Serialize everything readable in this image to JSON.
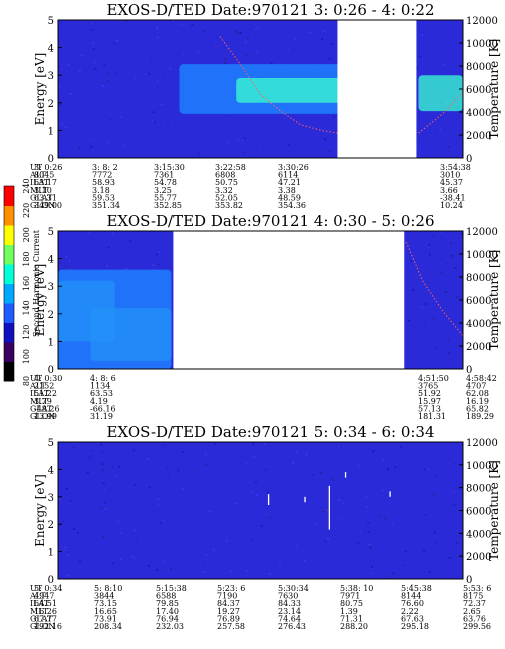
{
  "chart_data": [
    {
      "type": "heatmap",
      "title": "EXOS-D/TED   Date:970121  3: 0:26 - 4: 0:22",
      "ylabel": "Energy [eV]",
      "y2label": "Temperature [K]",
      "ylim": [
        0,
        5
      ],
      "y2lim": [
        0,
        12000
      ],
      "yticks": [
        0,
        1,
        2,
        3,
        4,
        5
      ],
      "y2ticks": [
        0,
        2000,
        4000,
        6000,
        8000,
        10000,
        12000
      ],
      "data_gaps": [
        [
          0.69,
          0.885
        ]
      ],
      "bands": [
        {
          "x": [
            0.3,
            0.7
          ],
          "y": [
            1.6,
            3.4
          ],
          "level": "mid"
        },
        {
          "x": [
            0.44,
            0.7
          ],
          "y": [
            2.0,
            2.9
          ],
          "level": "high"
        },
        {
          "x": [
            0.89,
            1.0
          ],
          "y": [
            1.7,
            3.0
          ],
          "level": "high"
        }
      ],
      "traces": [
        {
          "x": [
            0.4,
            0.45,
            0.5,
            0.55,
            0.6,
            0.65,
            0.69
          ],
          "y": [
            4.4,
            3.4,
            2.3,
            1.7,
            1.2,
            1.0,
            0.9
          ],
          "color": "#ff6060"
        },
        {
          "x": [
            0.89,
            0.95,
            1.0
          ],
          "y": [
            0.9,
            1.6,
            2.4
          ],
          "color": "#ff6060"
        }
      ],
      "table": {
        "rows": [
          {
            "label": "UT",
            "values": [
              "3: 0:26",
              "3: 8: 2",
              "3:15:30",
              "3:22:58",
              "3:30:26",
              "3:54:38"
            ]
          },
          {
            "label": "ALT",
            "values": [
              "8045",
              "7772",
              "7361",
              "6808",
              "6114",
              "3010"
            ]
          },
          {
            "label": "ILAT",
            "values": [
              "63.17",
              "58.93",
              "54.78",
              "50.75",
              "47.21",
              "45.37"
            ]
          },
          {
            "label": "MLT",
            "values": [
              "3.10",
              "3.18",
              "3.25",
              "3.32",
              "3.38",
              "3.66"
            ]
          },
          {
            "label": "GLAT",
            "values": [
              "63.31",
              "59.53",
              "55.77",
              "52.05",
              "48.59",
              "-38.41"
            ]
          },
          {
            "label": "GLON",
            "values": [
              "349.00",
              "351.34",
              "352.85",
              "353.82",
              "354.36",
              "10.24"
            ]
          }
        ]
      }
    },
    {
      "type": "heatmap",
      "title": "EXOS-D/TED   Date:970121  4: 0:30 - 5: 0:26",
      "ylabel": "Energy [eV]",
      "y2label": "Temperature [K]",
      "ylim": [
        0,
        5
      ],
      "y2lim": [
        0,
        12000
      ],
      "yticks": [
        0,
        1,
        2,
        3,
        4,
        5
      ],
      "y2ticks": [
        0,
        2000,
        4000,
        6000,
        8000,
        10000,
        12000
      ],
      "data_gaps": [
        [
          0.285,
          0.855
        ]
      ],
      "bands": [
        {
          "x": [
            0.0,
            0.14
          ],
          "y": [
            1.0,
            3.2
          ],
          "level": "high"
        },
        {
          "x": [
            0.08,
            0.28
          ],
          "y": [
            0.3,
            2.2
          ],
          "level": "high"
        },
        {
          "x": [
            0.0,
            0.28
          ],
          "y": [
            0.0,
            3.6
          ],
          "level": "mid"
        }
      ],
      "traces": [
        {
          "x": [
            0.86,
            0.9,
            0.95,
            1.0
          ],
          "y": [
            4.6,
            3.2,
            2.1,
            1.2
          ],
          "color": "#ff6060"
        }
      ],
      "table": {
        "rows": [
          {
            "label": "UT",
            "values": [
              "4: 0:30",
              "4: 8: 6",
              "4:51:50",
              "4:58:42"
            ]
          },
          {
            "label": "ALT",
            "values": [
              "2152",
              "1134",
              "3765",
              "4707"
            ]
          },
          {
            "label": "ILAT",
            "values": [
              "51.22",
              "63.53",
              "51.92",
              "62.08"
            ]
          },
          {
            "label": "MLT",
            "values": [
              "3.79",
              "4.19",
              "15.97",
              "16.19"
            ]
          },
          {
            "label": "GLAT",
            "values": [
              "-48.26",
              "-66.16",
              "57.13",
              "65.82"
            ]
          },
          {
            "label": "GLON",
            "values": [
              "13.99",
              "31.19",
              "181.31",
              "189.29"
            ]
          }
        ]
      }
    },
    {
      "type": "heatmap",
      "title": "EXOS-D/TED   Date:970121  5: 0:34 - 6: 0:34",
      "ylabel": "Energy [eV]",
      "y2label": "Temperature [K]",
      "ylim": [
        0,
        5
      ],
      "y2lim": [
        0,
        12000
      ],
      "yticks": [
        0,
        1,
        2,
        3,
        4,
        5
      ],
      "y2ticks": [
        0,
        2000,
        4000,
        6000,
        8000,
        10000,
        12000
      ],
      "data_gaps": [],
      "bands": [],
      "traces": [],
      "table": {
        "rows": [
          {
            "label": "UT",
            "values": [
              "5: 0:34",
              "5: 8:10",
              "5:15:38",
              "5:23: 6",
              "5:30:34",
              "5:38: 10",
              "5:45:38",
              "5:53: 6",
              "6: 0:34"
            ]
          },
          {
            "label": "ALT",
            "values": [
              "4947",
              "3844",
              "6588",
              "7190",
              "7630",
              "7971",
              "8144",
              "8175",
              "8066"
            ]
          },
          {
            "label": "ILAT",
            "values": [
              "64.51",
              "73.15",
              "79.85",
              "84.37",
              "84.33",
              "80.75",
              "76.60",
              "72.37",
              "68.12"
            ]
          },
          {
            "label": "MLT",
            "values": [
              "16.26",
              "16.65",
              "17.40",
              "19.27",
              "23.14",
              "1.39",
              "2.22",
              "2.65",
              "2.91"
            ]
          },
          {
            "label": "GLAT",
            "values": [
              "67.77",
              "73.91",
              "76.94",
              "76.89",
              "74.64",
              "71.31",
              "67.63",
              "63.76",
              "59.76"
            ]
          },
          {
            "label": "GLON",
            "values": [
              "192.16",
              "208.34",
              "232.03",
              "257.58",
              "276.43",
              "288.20",
              "295.18",
              "299.56",
              "302.39"
            ]
          }
        ]
      }
    }
  ],
  "colorbar": {
    "label": "Second Harmonic Current",
    "range": [
      80,
      240
    ],
    "ticks": [
      80,
      100,
      120,
      140,
      160,
      180,
      200,
      220,
      240
    ],
    "colors": [
      "#000000",
      "#3a0060",
      "#1010c0",
      "#1d5cff",
      "#00a8ff",
      "#00ffd8",
      "#70ff60",
      "#ffff00",
      "#ff9000",
      "#ff0000"
    ]
  },
  "colors": {
    "background_level": "#2a2ad8",
    "mid_level": "#1f7fff",
    "high_level": "#3affd0",
    "gap": "#ffffff"
  }
}
